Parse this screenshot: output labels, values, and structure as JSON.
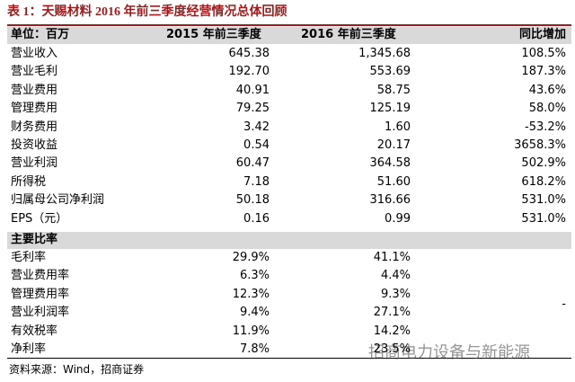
{
  "title": "表 1：天赐材料 2016 年前三季度经营情况总体回顾",
  "table": {
    "header": [
      "单位：百万",
      "2015 年前三季度",
      "2016 年前三季度",
      "同比增加"
    ],
    "rows": [
      [
        "营业收入",
        "645.38",
        "1,345.68",
        "108.5%"
      ],
      [
        "营业毛利",
        "192.70",
        "553.69",
        "187.3%"
      ],
      [
        "营业费用",
        "40.91",
        "58.75",
        "43.6%"
      ],
      [
        "管理费用",
        "79.25",
        "125.19",
        "58.0%"
      ],
      [
        "财务费用",
        "3.42",
        "1.60",
        "-53.2%"
      ],
      [
        "投资收益",
        "0.54",
        "20.17",
        "3658.3%"
      ],
      [
        "营业利润",
        "60.47",
        "364.58",
        "502.9%"
      ],
      [
        "所得税",
        "7.18",
        "51.60",
        "618.2%"
      ],
      [
        "归属母公司净利润",
        "50.18",
        "316.66",
        "531.0%"
      ],
      [
        "EPS（元）",
        "0.16",
        "0.99",
        "531.0%"
      ]
    ],
    "section": "主要比率",
    "ratio_rows": [
      [
        "毛利率",
        "29.9%",
        "41.1%"
      ],
      [
        "营业费用率",
        "6.3%",
        "4.4%"
      ],
      [
        "管理费用率",
        "12.3%",
        "9.3%",
        "-"
      ],
      [
        "营业利润率",
        "9.4%",
        "27.1%"
      ],
      [
        "有效税率",
        "11.9%",
        "14.2%"
      ],
      [
        "净利率",
        "7.8%",
        "23.5%"
      ]
    ]
  },
  "source": "资料来源：Wind，招商证券",
  "watermark": "招商电力设备与新能源"
}
